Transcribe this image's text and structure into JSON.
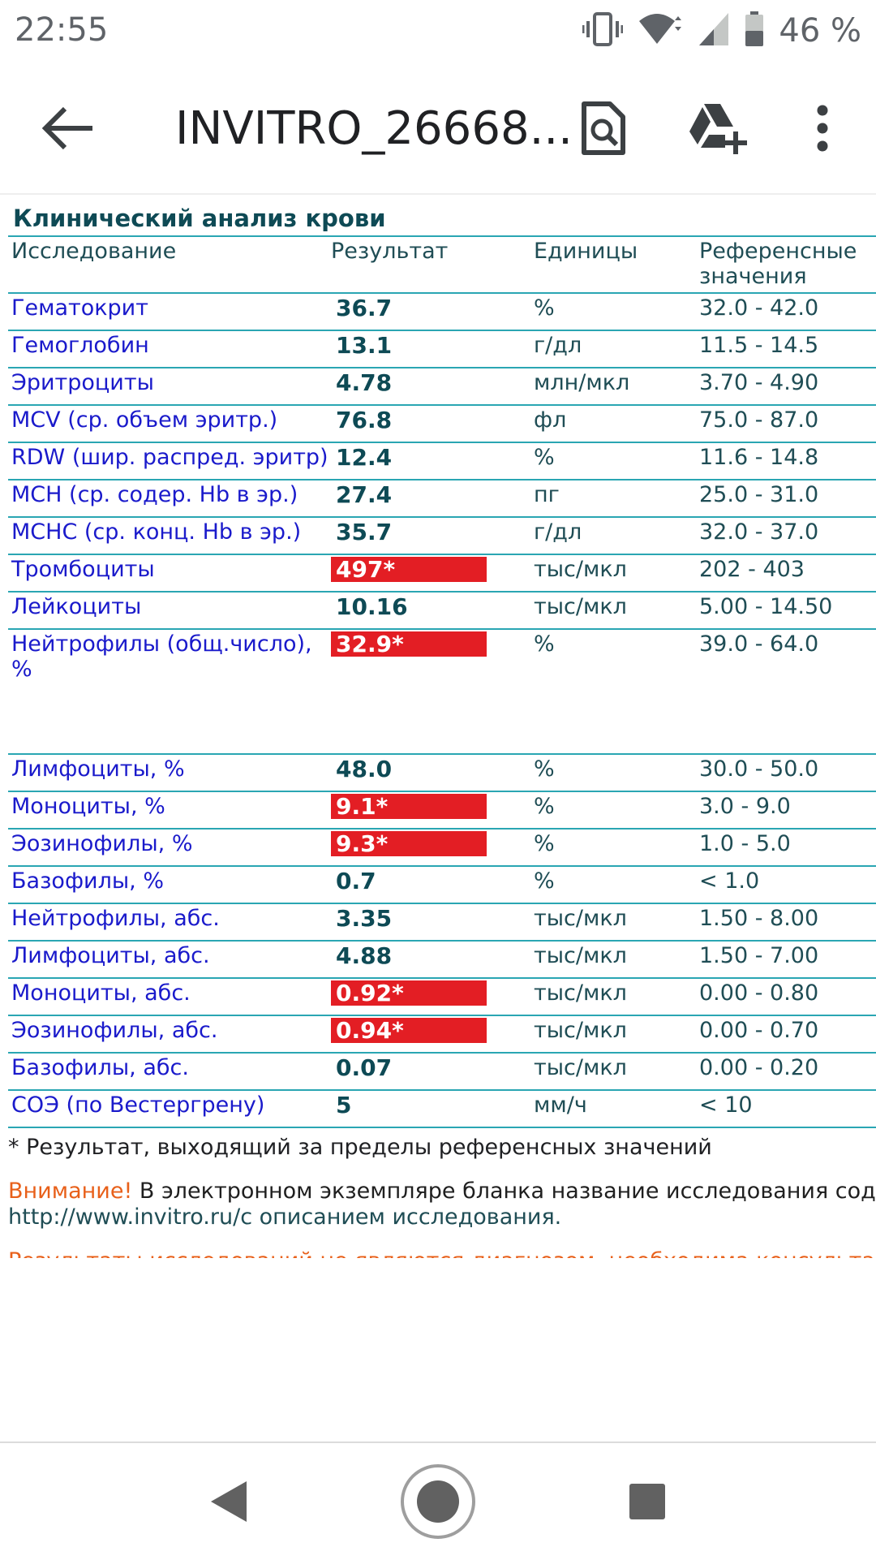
{
  "status": {
    "time": "22:55",
    "battery": "46 %"
  },
  "appbar": {
    "title": "INVITRO_26668..."
  },
  "report": {
    "section_title": "Клинический анализ крови",
    "headers": {
      "name": "Исследование",
      "result": "Результат",
      "units": "Единицы",
      "ref": "Референсные значения"
    },
    "rows": [
      {
        "name": "Гематокрит",
        "value": "36.7",
        "flag": false,
        "unit": "%",
        "ref": "32.0 - 42.0"
      },
      {
        "name": "Гемоглобин",
        "value": "13.1",
        "flag": false,
        "unit": "г/дл",
        "ref": "11.5 - 14.5"
      },
      {
        "name": "Эритроциты",
        "value": "4.78",
        "flag": false,
        "unit": "млн/мкл",
        "ref": "3.70 - 4.90"
      },
      {
        "name": "MCV (ср. объем эритр.)",
        "value": "76.8",
        "flag": false,
        "unit": "фл",
        "ref": "75.0 - 87.0"
      },
      {
        "name": "RDW (шир. распред. эритр)",
        "value": "12.4",
        "flag": false,
        "unit": "%",
        "ref": "11.6 - 14.8"
      },
      {
        "name": "MCH (ср. содер. Hb в эр.)",
        "value": "27.4",
        "flag": false,
        "unit": "пг",
        "ref": "25.0 - 31.0"
      },
      {
        "name": "MCHC (ср. конц. Hb в эр.)",
        "value": "35.7",
        "flag": false,
        "unit": "г/дл",
        "ref": "32.0 - 37.0"
      },
      {
        "name": "Тромбоциты",
        "value": "497*",
        "flag": true,
        "unit": "тыс/мкл",
        "ref": "202 - 403"
      },
      {
        "name": "Лейкоциты",
        "value": "10.16",
        "flag": false,
        "unit": "тыс/мкл",
        "ref": "5.00 - 14.50"
      },
      {
        "name": "Нейтрофилы (общ.число), %",
        "value": "32.9*",
        "flag": true,
        "unit": "%",
        "ref": "39.0 - 64.0"
      },
      {
        "name": "Лимфоциты, %",
        "value": "48.0",
        "flag": false,
        "unit": "%",
        "ref": "30.0 - 50.0"
      },
      {
        "name": "Моноциты, %",
        "value": "9.1*",
        "flag": true,
        "unit": "%",
        "ref": "3.0 - 9.0"
      },
      {
        "name": "Эозинофилы, %",
        "value": "9.3*",
        "flag": true,
        "unit": "%",
        "ref": "1.0 - 5.0"
      },
      {
        "name": "Базофилы, %",
        "value": "0.7",
        "flag": false,
        "unit": "%",
        "ref": "< 1.0"
      },
      {
        "name": "Нейтрофилы, абс.",
        "value": "3.35",
        "flag": false,
        "unit": "тыс/мкл",
        "ref": "1.50 - 8.00"
      },
      {
        "name": "Лимфоциты, абс.",
        "value": "4.88",
        "flag": false,
        "unit": "тыс/мкл",
        "ref": "1.50 - 7.00"
      },
      {
        "name": "Моноциты, абс.",
        "value": "0.92*",
        "flag": true,
        "unit": "тыс/мкл",
        "ref": "0.00 - 0.80"
      },
      {
        "name": "Эозинофилы, абс.",
        "value": "0.94*",
        "flag": true,
        "unit": "тыс/мкл",
        "ref": "0.00 - 0.70"
      },
      {
        "name": "Базофилы, абс.",
        "value": "0.07",
        "flag": false,
        "unit": "тыс/мкл",
        "ref": "0.00 - 0.20"
      },
      {
        "name": "СОЭ (по Вестергрену)",
        "value": "5",
        "flag": false,
        "unit": "мм/ч",
        "ref": "< 10"
      }
    ],
    "footnote": "* Результат, выходящий за пределы референсных значений",
    "warning_lead": "Внимание!",
    "warning_text": " В электронном экземпляре бланка название исследования содержит ссылку на страницу сайта",
    "warning_link": "http://www.invitro.ru/с описанием исследования.",
    "disclaimer": "Результаты исследований не являются диагнозом, необходима консультация специалиста."
  },
  "colors": {
    "flag": "#e31e24",
    "rule": "#2aa6b3",
    "name_text": "#1a1acb",
    "value_text": "#0e4a55",
    "warn": "#e8601a"
  },
  "icons": {
    "status": [
      "vibrate-icon",
      "wifi-icon",
      "cell-signal-icon",
      "battery-icon"
    ],
    "appbar": [
      "back-arrow-icon",
      "document-search-icon",
      "drive-add-icon",
      "more-vert-icon"
    ],
    "nav": [
      "nav-back-icon",
      "nav-home-icon",
      "nav-recents-icon"
    ]
  }
}
